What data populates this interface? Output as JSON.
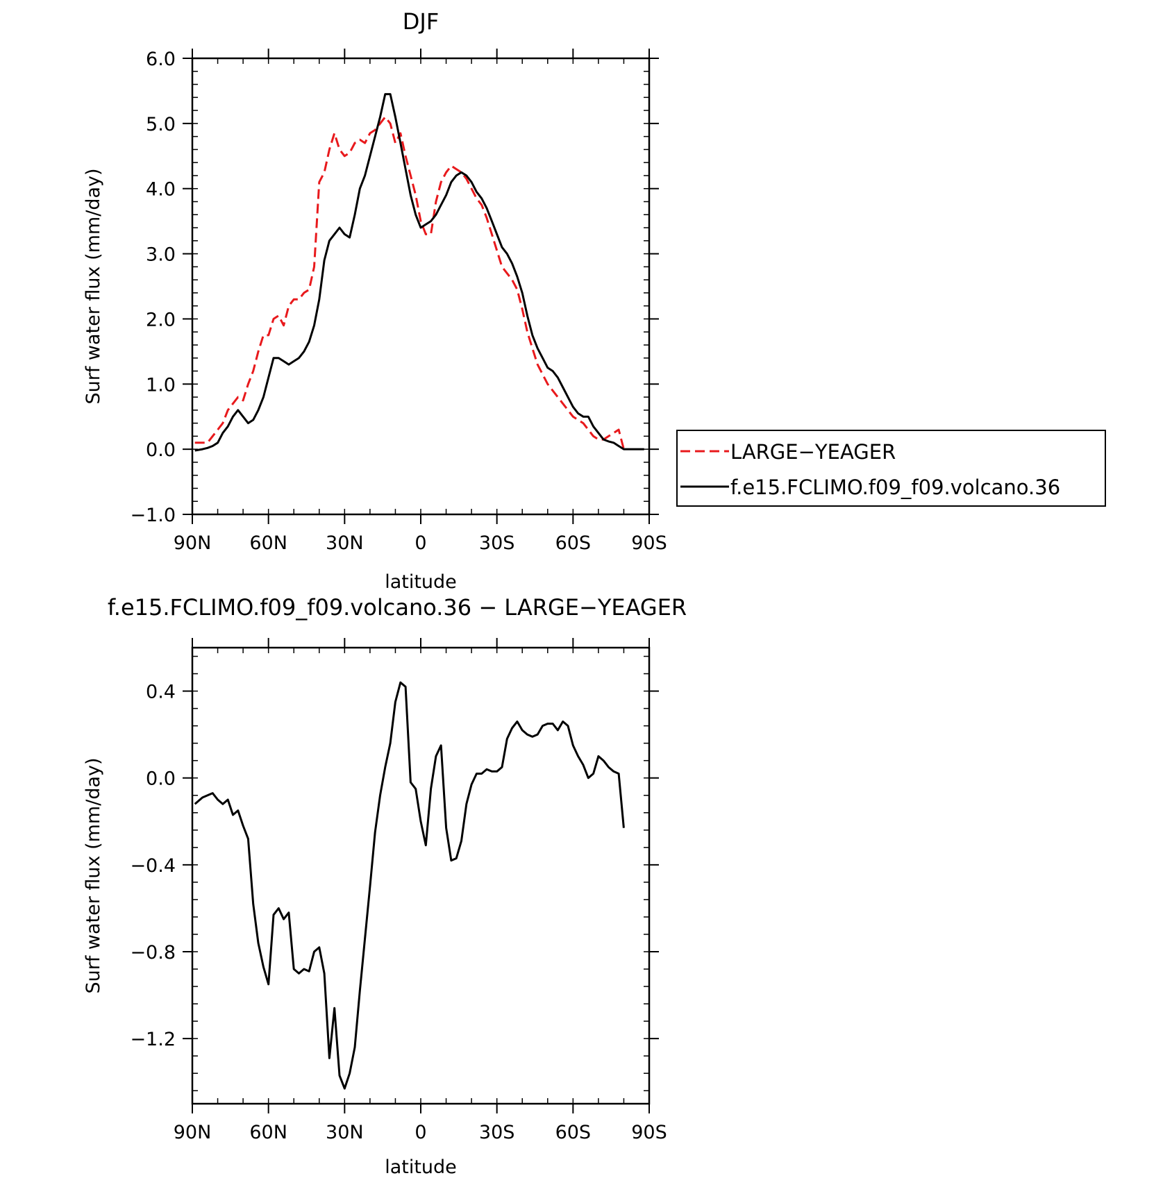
{
  "chart_data": [
    {
      "type": "line",
      "title": "DJF",
      "xlabel": "latitude",
      "ylabel": "Surf water flux (mm/day)",
      "xlim": [
        -90,
        90
      ],
      "ylim": [
        -1.0,
        6.0
      ],
      "x_ticks": [
        -90,
        -60,
        -30,
        0,
        30,
        60,
        90
      ],
      "x_tick_labels": [
        "90N",
        "60N",
        "30N",
        "0",
        "30S",
        "60S",
        "90S"
      ],
      "y_ticks": [
        -1.0,
        0.0,
        1.0,
        2.0,
        3.0,
        4.0,
        5.0,
        6.0
      ],
      "y_tick_labels": [
        "−1.0",
        "0.0",
        "1.0",
        "2.0",
        "3.0",
        "4.0",
        "5.0",
        "6.0"
      ],
      "legend_position": "right",
      "series": [
        {
          "name": "LARGE−YEAGER",
          "color": "#e8191c",
          "dash": "dashed",
          "x": [
            -89,
            -86,
            -84,
            -82,
            -80,
            -78,
            -76,
            -74,
            -72,
            -70,
            -68,
            -66,
            -64,
            -62,
            -60,
            -58,
            -56,
            -54,
            -52,
            -50,
            -48,
            -46,
            -44,
            -42,
            -40,
            -38,
            -36,
            -34,
            -32,
            -30,
            -28,
            -26,
            -24,
            -22,
            -20,
            -18,
            -16,
            -14,
            -12,
            -10,
            -8,
            -6,
            -4,
            -2,
            0,
            2,
            4,
            6,
            8,
            10,
            12,
            14,
            16,
            18,
            20,
            22,
            24,
            26,
            28,
            30,
            32,
            34,
            36,
            38,
            40,
            42,
            44,
            46,
            48,
            50,
            52,
            54,
            56,
            58,
            60,
            62,
            64,
            66,
            68,
            70,
            72,
            74,
            76,
            78,
            80
          ],
          "y": [
            0.1,
            0.1,
            0.1,
            0.2,
            0.3,
            0.4,
            0.6,
            0.7,
            0.8,
            0.75,
            1.0,
            1.2,
            1.5,
            1.75,
            1.75,
            2.0,
            2.05,
            1.9,
            2.2,
            2.3,
            2.3,
            2.4,
            2.45,
            2.8,
            4.1,
            4.25,
            4.6,
            4.85,
            4.6,
            4.5,
            4.55,
            4.7,
            4.75,
            4.7,
            4.85,
            4.9,
            5.0,
            5.1,
            5.0,
            4.7,
            4.85,
            4.5,
            4.2,
            3.9,
            3.5,
            3.3,
            3.3,
            3.8,
            4.1,
            4.25,
            4.35,
            4.3,
            4.25,
            4.15,
            4.0,
            3.85,
            3.75,
            3.55,
            3.3,
            3.05,
            2.8,
            2.7,
            2.6,
            2.45,
            2.15,
            1.8,
            1.55,
            1.3,
            1.15,
            1.0,
            0.9,
            0.8,
            0.7,
            0.6,
            0.5,
            0.45,
            0.4,
            0.3,
            0.2,
            0.15,
            0.15,
            0.2,
            0.25,
            0.3,
            0.0
          ]
        },
        {
          "name": "f.e15.FCLIMO.f09_f09.volcano.36",
          "color": "#000000",
          "dash": "solid",
          "x": [
            -89,
            -86,
            -84,
            -82,
            -80,
            -78,
            -76,
            -74,
            -72,
            -70,
            -68,
            -66,
            -64,
            -62,
            -60,
            -58,
            -56,
            -54,
            -52,
            -50,
            -48,
            -46,
            -44,
            -42,
            -40,
            -38,
            -36,
            -34,
            -32,
            -30,
            -28,
            -26,
            -24,
            -22,
            -20,
            -18,
            -16,
            -14,
            -12,
            -10,
            -8,
            -6,
            -4,
            -2,
            0,
            2,
            4,
            6,
            8,
            10,
            12,
            14,
            16,
            18,
            20,
            22,
            24,
            26,
            28,
            30,
            32,
            34,
            36,
            38,
            40,
            42,
            44,
            46,
            48,
            50,
            52,
            54,
            56,
            58,
            60,
            62,
            64,
            66,
            68,
            70,
            72,
            74,
            76,
            78,
            80,
            84,
            88
          ],
          "y": [
            -0.02,
            0.0,
            0.02,
            0.05,
            0.1,
            0.25,
            0.35,
            0.5,
            0.6,
            0.5,
            0.4,
            0.45,
            0.6,
            0.8,
            1.1,
            1.4,
            1.4,
            1.35,
            1.3,
            1.35,
            1.4,
            1.5,
            1.65,
            1.9,
            2.3,
            2.9,
            3.2,
            3.3,
            3.4,
            3.3,
            3.25,
            3.6,
            4.0,
            4.2,
            4.5,
            4.8,
            5.1,
            5.45,
            5.45,
            5.1,
            4.7,
            4.3,
            3.9,
            3.6,
            3.4,
            3.45,
            3.5,
            3.6,
            3.75,
            3.9,
            4.1,
            4.2,
            4.25,
            4.2,
            4.1,
            3.95,
            3.85,
            3.7,
            3.5,
            3.3,
            3.1,
            3.0,
            2.85,
            2.65,
            2.4,
            2.05,
            1.75,
            1.55,
            1.4,
            1.25,
            1.2,
            1.1,
            0.95,
            0.8,
            0.65,
            0.55,
            0.5,
            0.5,
            0.35,
            0.25,
            0.15,
            0.12,
            0.1,
            0.05,
            0.0,
            0.0,
            0.0
          ]
        }
      ]
    },
    {
      "type": "line",
      "title": "f.e15.FCLIMO.f09_f09.volcano.36 − LARGE−YEAGER",
      "xlabel": "latitude",
      "ylabel": "Surf water flux (mm/day)",
      "xlim": [
        -90,
        90
      ],
      "ylim": [
        -1.5,
        0.6
      ],
      "x_ticks": [
        -90,
        -60,
        -30,
        0,
        30,
        60,
        90
      ],
      "x_tick_labels": [
        "90N",
        "60N",
        "30N",
        "0",
        "30S",
        "60S",
        "90S"
      ],
      "y_ticks": [
        -1.2,
        -0.8,
        -0.4,
        0.0,
        0.4
      ],
      "y_tick_labels": [
        "−1.2",
        "−0.8",
        "−0.4",
        "0.0",
        "0.4"
      ],
      "series": [
        {
          "color": "#000000",
          "dash": "solid",
          "x": [
            -89,
            -86,
            -84,
            -82,
            -80,
            -78,
            -76,
            -74,
            -72,
            -70,
            -68,
            -66,
            -64,
            -62,
            -60,
            -58,
            -56,
            -54,
            -52,
            -50,
            -48,
            -46,
            -44,
            -42,
            -40,
            -38,
            -36,
            -34,
            -32,
            -30,
            -28,
            -26,
            -24,
            -22,
            -20,
            -18,
            -16,
            -14,
            -12,
            -10,
            -8,
            -6,
            -4,
            -2,
            0,
            2,
            4,
            6,
            8,
            10,
            12,
            14,
            16,
            18,
            20,
            22,
            24,
            26,
            28,
            30,
            32,
            34,
            36,
            38,
            40,
            42,
            44,
            46,
            48,
            50,
            52,
            54,
            56,
            58,
            60,
            62,
            64,
            66,
            68,
            70,
            72,
            74,
            76,
            78,
            80
          ],
          "y": [
            -0.12,
            -0.09,
            -0.08,
            -0.07,
            -0.1,
            -0.12,
            -0.1,
            -0.17,
            -0.15,
            -0.22,
            -0.28,
            -0.58,
            -0.76,
            -0.87,
            -0.95,
            -0.63,
            -0.6,
            -0.65,
            -0.62,
            -0.88,
            -0.9,
            -0.88,
            -0.89,
            -0.8,
            -0.78,
            -0.9,
            -1.29,
            -1.06,
            -1.37,
            -1.43,
            -1.36,
            -1.24,
            -0.98,
            -0.74,
            -0.5,
            -0.25,
            -0.08,
            0.05,
            0.16,
            0.35,
            0.44,
            0.42,
            -0.02,
            -0.05,
            -0.2,
            -0.31,
            -0.05,
            0.1,
            0.15,
            -0.23,
            -0.38,
            -0.37,
            -0.29,
            -0.12,
            -0.03,
            0.02,
            0.02,
            0.04,
            0.03,
            0.03,
            0.05,
            0.18,
            0.23,
            0.26,
            0.22,
            0.2,
            0.19,
            0.2,
            0.24,
            0.25,
            0.25,
            0.22,
            0.26,
            0.24,
            0.15,
            0.1,
            0.06,
            0.0,
            0.02,
            0.1,
            0.08,
            0.05,
            0.03,
            0.02,
            -0.23
          ]
        }
      ]
    }
  ]
}
